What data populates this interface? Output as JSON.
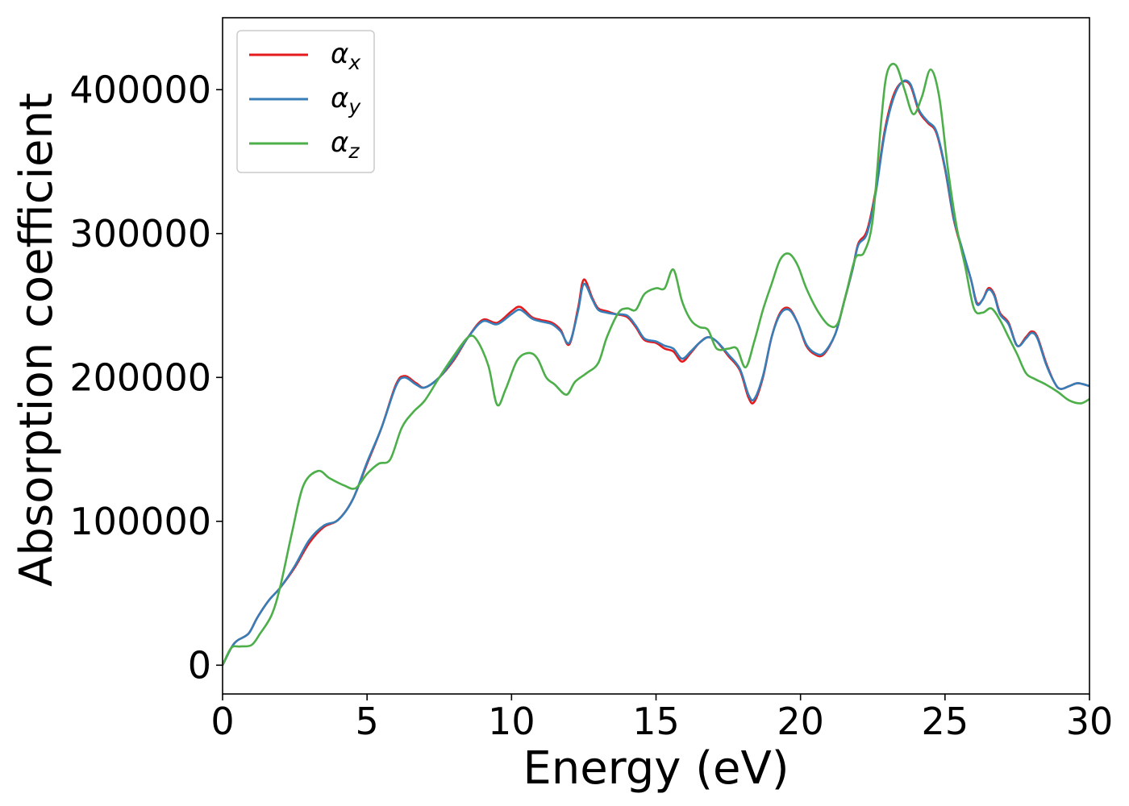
{
  "chart_data": {
    "type": "line",
    "xlabel": "Energy (eV)",
    "ylabel": "Absorption coefficient",
    "xlim": [
      0,
      30
    ],
    "ylim": [
      -20000,
      450000
    ],
    "xticks": [
      0,
      5,
      10,
      15,
      20,
      25,
      30
    ],
    "yticks": [
      0,
      100000,
      200000,
      300000,
      400000
    ],
    "grid": false,
    "legend_position": "top-left",
    "series": [
      {
        "name": "α",
        "subscript": "x",
        "color": "#e41a1c",
        "x": [
          0,
          0.3,
          0.5,
          0.9,
          1.2,
          1.6,
          2.0,
          2.5,
          3.0,
          3.5,
          4.0,
          4.5,
          5.0,
          5.5,
          6.0,
          6.3,
          6.7,
          7.0,
          7.5,
          8.0,
          8.5,
          9.0,
          9.5,
          10.0,
          10.3,
          10.7,
          11.0,
          11.4,
          11.7,
          12.0,
          12.3,
          12.5,
          12.8,
          13.0,
          13.3,
          13.6,
          14.0,
          14.3,
          14.6,
          15.0,
          15.3,
          15.6,
          15.9,
          16.2,
          16.5,
          16.8,
          17.1,
          17.5,
          17.9,
          18.2,
          18.4,
          18.7,
          19.0,
          19.3,
          19.6,
          19.9,
          20.2,
          20.5,
          20.8,
          21.2,
          21.5,
          21.8,
          22.0,
          22.3,
          22.6,
          22.9,
          23.2,
          23.5,
          23.8,
          24.1,
          24.4,
          24.7,
          25.0,
          25.3,
          25.6,
          25.9,
          26.1,
          26.3,
          26.5,
          26.7,
          26.9,
          27.2,
          27.5,
          27.8,
          28.0,
          28.2,
          28.5,
          28.8,
          29.0,
          29.3,
          29.6,
          30.0
        ],
        "y": [
          0,
          12000,
          17000,
          22000,
          33000,
          45000,
          54000,
          68000,
          85000,
          96000,
          101000,
          115000,
          140000,
          165000,
          195000,
          201000,
          196000,
          193000,
          200000,
          212000,
          228000,
          240000,
          238000,
          246000,
          249000,
          242000,
          240000,
          238000,
          233000,
          223000,
          248000,
          268000,
          255000,
          248000,
          246000,
          244000,
          242000,
          235000,
          226000,
          224000,
          220000,
          218000,
          211000,
          217000,
          224000,
          228000,
          225000,
          215000,
          205000,
          186000,
          183000,
          200000,
          228000,
          245000,
          248000,
          238000,
          222000,
          216000,
          216000,
          230000,
          252000,
          275000,
          293000,
          302000,
          330000,
          370000,
          395000,
          405000,
          403000,
          385000,
          377000,
          370000,
          345000,
          310000,
          288000,
          268000,
          252000,
          254000,
          262000,
          258000,
          245000,
          238000,
          222000,
          228000,
          232000,
          228000,
          210000,
          196000,
          192000,
          194000,
          196000,
          194000
        ]
      },
      {
        "name": "α",
        "subscript": "y",
        "color": "#377eb8",
        "x": [
          0,
          0.3,
          0.5,
          0.9,
          1.2,
          1.6,
          2.0,
          2.5,
          3.0,
          3.5,
          4.0,
          4.5,
          5.0,
          5.5,
          6.0,
          6.3,
          6.7,
          7.0,
          7.5,
          8.0,
          8.5,
          9.0,
          9.5,
          10.0,
          10.3,
          10.7,
          11.0,
          11.4,
          11.7,
          12.0,
          12.3,
          12.5,
          12.8,
          13.0,
          13.3,
          13.6,
          14.0,
          14.3,
          14.6,
          15.0,
          15.3,
          15.6,
          15.9,
          16.2,
          16.5,
          16.8,
          17.1,
          17.5,
          17.9,
          18.2,
          18.4,
          18.7,
          19.0,
          19.3,
          19.6,
          19.9,
          20.2,
          20.5,
          20.8,
          21.2,
          21.5,
          21.8,
          22.0,
          22.3,
          22.6,
          22.9,
          23.2,
          23.5,
          23.8,
          24.1,
          24.4,
          24.7,
          25.0,
          25.3,
          25.6,
          25.9,
          26.1,
          26.3,
          26.5,
          26.7,
          26.9,
          27.2,
          27.5,
          27.8,
          28.0,
          28.2,
          28.5,
          28.8,
          29.0,
          29.3,
          29.6,
          30.0
        ],
        "y": [
          0,
          12000,
          17000,
          22000,
          33000,
          45000,
          54000,
          69000,
          87000,
          97000,
          101000,
          115000,
          141000,
          165000,
          194000,
          200000,
          195000,
          193000,
          200000,
          213000,
          228000,
          239000,
          237000,
          244000,
          247000,
          241000,
          239000,
          237000,
          232000,
          224000,
          246000,
          265000,
          254000,
          247000,
          245000,
          244000,
          243000,
          236000,
          227000,
          225000,
          222000,
          220000,
          213000,
          218000,
          224000,
          228000,
          225000,
          216000,
          206000,
          188000,
          185000,
          201000,
          228000,
          244000,
          247000,
          238000,
          223000,
          217000,
          217000,
          230000,
          252000,
          275000,
          292000,
          300000,
          328000,
          368000,
          393000,
          405000,
          404000,
          386000,
          378000,
          371000,
          346000,
          311000,
          289000,
          268000,
          251000,
          254000,
          261000,
          257000,
          244000,
          237000,
          222000,
          227000,
          231000,
          227000,
          209000,
          196000,
          192000,
          194000,
          196000,
          194000
        ]
      },
      {
        "name": "α",
        "subscript": "z",
        "color": "#4daf4a",
        "x": [
          0,
          0.3,
          0.6,
          1.0,
          1.3,
          1.7,
          2.0,
          2.4,
          2.8,
          3.3,
          3.7,
          4.2,
          4.6,
          5.0,
          5.4,
          5.8,
          6.2,
          6.6,
          7.0,
          7.5,
          8.0,
          8.5,
          8.8,
          9.2,
          9.5,
          9.8,
          10.2,
          10.6,
          10.9,
          11.2,
          11.5,
          11.9,
          12.2,
          12.6,
          13.0,
          13.3,
          13.7,
          14.0,
          14.3,
          14.6,
          15.0,
          15.3,
          15.6,
          15.9,
          16.2,
          16.5,
          16.8,
          17.1,
          17.5,
          17.8,
          18.1,
          18.4,
          18.7,
          19.0,
          19.3,
          19.6,
          19.9,
          20.2,
          20.6,
          21.0,
          21.3,
          21.6,
          21.9,
          22.2,
          22.5,
          22.8,
          23.0,
          23.3,
          23.6,
          23.9,
          24.2,
          24.5,
          24.8,
          25.1,
          25.4,
          25.7,
          26.0,
          26.3,
          26.6,
          26.9,
          27.2,
          27.5,
          27.8,
          28.1,
          28.5,
          28.9,
          29.3,
          29.7,
          30.0
        ],
        "y": [
          0,
          12000,
          13000,
          14000,
          22000,
          35000,
          55000,
          92000,
          125000,
          135000,
          130000,
          125000,
          123000,
          133000,
          140000,
          143000,
          165000,
          176000,
          184000,
          200000,
          215000,
          228000,
          226000,
          208000,
          181000,
          192000,
          212000,
          217000,
          213000,
          200000,
          195000,
          188000,
          197000,
          203000,
          210000,
          228000,
          245000,
          248000,
          247000,
          258000,
          262000,
          262000,
          275000,
          253000,
          240000,
          235000,
          233000,
          220000,
          220000,
          220000,
          207000,
          225000,
          247000,
          265000,
          282000,
          286000,
          278000,
          262000,
          246000,
          236000,
          238000,
          260000,
          283000,
          287000,
          310000,
          380000,
          412000,
          417000,
          400000,
          383000,
          395000,
          414000,
          395000,
          345000,
          305000,
          277000,
          248000,
          245000,
          248000,
          240000,
          228000,
          216000,
          203000,
          199000,
          195000,
          190000,
          184000,
          182000,
          185000
        ]
      }
    ]
  }
}
